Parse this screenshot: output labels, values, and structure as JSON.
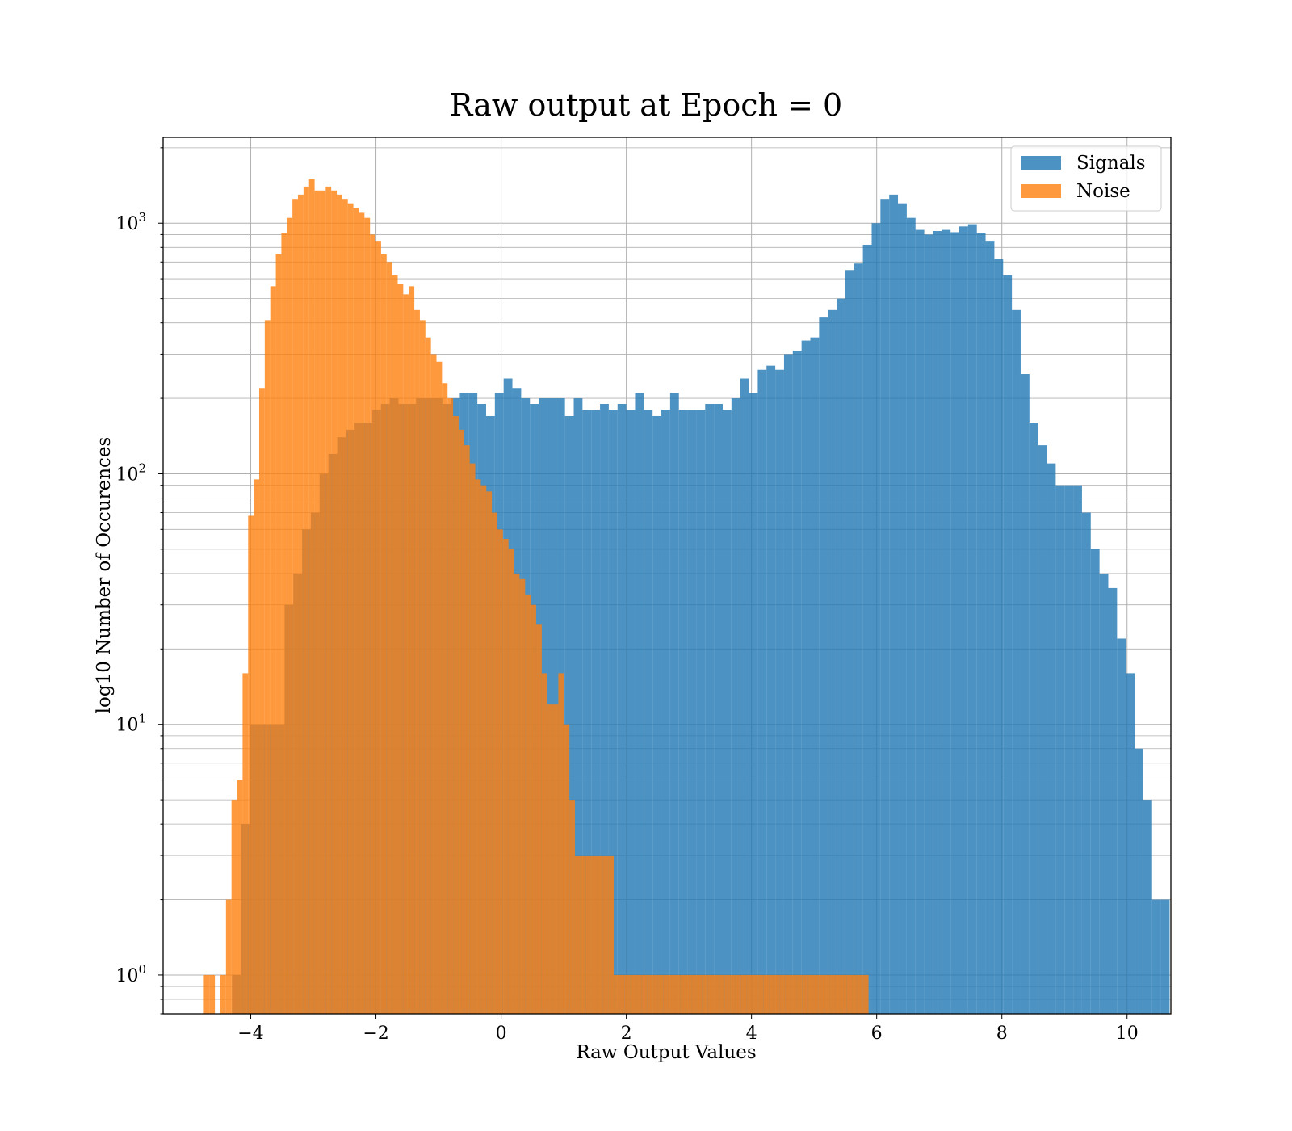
{
  "chart_data": {
    "type": "bar",
    "title": "Raw output at Epoch = 0",
    "xlabel": "Raw Output Values",
    "ylabel": "log10 Number of Occurences",
    "y_scale": "log",
    "xlim": [
      -5.4,
      10.7
    ],
    "ylim": [
      0.7,
      2200
    ],
    "grid": true,
    "legend_position": "top-right",
    "x_ticks": [
      -4,
      -2,
      0,
      2,
      4,
      6,
      8,
      10
    ],
    "x_tick_labels": [
      "−4",
      "−2",
      "0",
      "2",
      "4",
      "6",
      "8",
      "10"
    ],
    "y_ticks": [
      {
        "value": 1,
        "base": "10",
        "exp": "0"
      },
      {
        "value": 10,
        "base": "10",
        "exp": "1"
      },
      {
        "value": 100,
        "base": "10",
        "exp": "2"
      },
      {
        "value": 1000,
        "base": "10",
        "exp": "3"
      }
    ],
    "series": [
      {
        "name": "Signals",
        "color": "#1f77b4",
        "alpha": 0.8,
        "bin_start": -4.3,
        "bin_width": 0.14,
        "values": [
          1,
          4,
          10,
          10,
          10,
          10,
          30,
          40,
          60,
          70,
          100,
          120,
          140,
          150,
          160,
          160,
          180,
          190,
          200,
          190,
          190,
          200,
          200,
          200,
          190,
          200,
          210,
          210,
          190,
          170,
          210,
          240,
          220,
          200,
          190,
          200,
          200,
          200,
          170,
          200,
          180,
          180,
          190,
          180,
          190,
          180,
          210,
          180,
          170,
          180,
          210,
          180,
          180,
          180,
          190,
          190,
          180,
          200,
          240,
          210,
          260,
          270,
          260,
          300,
          310,
          340,
          350,
          420,
          450,
          500,
          650,
          690,
          820,
          1000,
          1250,
          1300,
          1200,
          1050,
          940,
          900,
          930,
          940,
          920,
          970,
          990,
          910,
          850,
          720,
          620,
          450,
          250,
          160,
          130,
          110,
          90,
          90,
          90,
          70,
          50,
          40,
          35,
          22,
          16,
          8,
          5,
          2,
          2
        ]
      },
      {
        "name": "Noise",
        "color": "#ff7f0e",
        "alpha": 0.8,
        "bin_start": -4.75,
        "bin_width": 0.0885,
        "values": [
          1,
          1,
          0,
          1,
          2,
          5,
          6,
          16,
          68,
          95,
          220,
          410,
          560,
          750,
          910,
          1050,
          1250,
          1300,
          1400,
          1500,
          1350,
          1350,
          1400,
          1350,
          1300,
          1250,
          1200,
          1150,
          1100,
          1050,
          900,
          850,
          750,
          700,
          620,
          570,
          520,
          560,
          450,
          410,
          350,
          300,
          280,
          230,
          200,
          170,
          150,
          130,
          110,
          95,
          90,
          85,
          70,
          60,
          55,
          50,
          40,
          38,
          33,
          30,
          25,
          16,
          12,
          12,
          16,
          10,
          5,
          3,
          3,
          3,
          3,
          3,
          3,
          3,
          1,
          1,
          1,
          1,
          1,
          1,
          1,
          1,
          1,
          1,
          1,
          1,
          1,
          1,
          1,
          1,
          1,
          1,
          1,
          1,
          1,
          1,
          1,
          1,
          1,
          1,
          1,
          1,
          1,
          1,
          1,
          1,
          1,
          1,
          1,
          1,
          1,
          1,
          1,
          1,
          1,
          1,
          1,
          1,
          1,
          1
        ]
      }
    ]
  }
}
